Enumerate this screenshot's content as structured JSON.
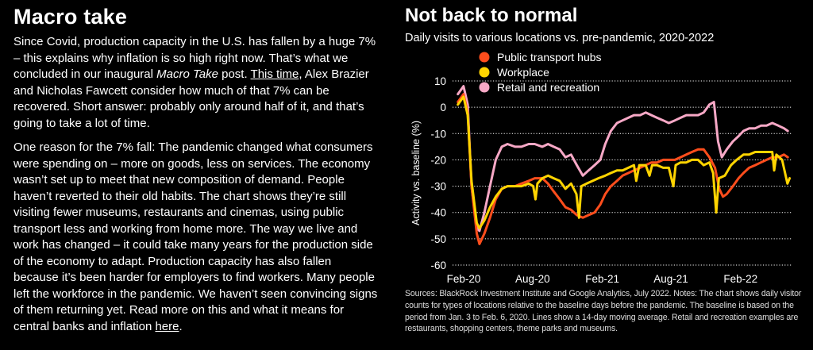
{
  "article": {
    "title": "Macro take",
    "p1_a": "Since Covid, production capacity in the U.S. has fallen by a huge 7% – this explains why inflation is so high right now. That’s what we concluded in our inaugural ",
    "p1_em": "Macro Take",
    "p1_b": " post. ",
    "p1_link": "This time",
    "p1_c": ", Alex Brazier and Nicholas Fawcett consider how much of that 7% can be recovered. Short answer: probably only around half of it, and that’s going to take a lot of time.",
    "p2_a": "One reason for the 7% fall: The pandemic changed what consumers were spending on – more on goods, less on services. The economy wasn’t set up to meet that new composition of demand. People haven’t reverted to their old habits. The chart shows they’re still visiting fewer museums, restaurants and cinemas, using public transport less and working from home more. The way we live and work has changed – it could take many years for the production side of the economy to adapt. Production capacity has also fallen because it’s been harder for employers to find workers. Many people left the workforce in the pandemic. We haven’t seen convincing signs of them returning yet. Read more on this and what it means for central banks and inflation ",
    "p2_link": "here",
    "p2_b": "."
  },
  "chart_header": {
    "title": "Not back to normal",
    "subtitle": "Daily visits to various locations vs. pre-pandemic, 2020-2022"
  },
  "chart_data": {
    "type": "line",
    "title": "Not back to normal",
    "subtitle": "Daily visits to various locations vs. pre-pandemic, 2020-2022",
    "xlabel": "",
    "ylabel": "Activity vs. baseline (%)",
    "ylim": [
      -60,
      10
    ],
    "yticks": [
      10,
      0,
      -10,
      -20,
      -30,
      -40,
      -50,
      -60
    ],
    "xlim": [
      "2020-02-01",
      "2022-07-15"
    ],
    "xticks": [
      {
        "label": "Feb-20",
        "date": "2020-02-01"
      },
      {
        "label": "Aug-20",
        "date": "2020-08-01"
      },
      {
        "label": "Feb-21",
        "date": "2021-02-01"
      },
      {
        "label": "Aug-21",
        "date": "2021-08-01"
      },
      {
        "label": "Feb-22",
        "date": "2022-02-01"
      }
    ],
    "grid": "horizontal",
    "legend_position": "top",
    "series": [
      {
        "name": "Public transport hubs",
        "color": "#FF4D1C",
        "points": [
          [
            "2020-02-15",
            2
          ],
          [
            "2020-03-01",
            5
          ],
          [
            "2020-03-12",
            -2
          ],
          [
            "2020-03-22",
            -30
          ],
          [
            "2020-04-05",
            -48
          ],
          [
            "2020-04-12",
            -52
          ],
          [
            "2020-04-25",
            -48
          ],
          [
            "2020-05-10",
            -42
          ],
          [
            "2020-05-25",
            -35
          ],
          [
            "2020-06-10",
            -31
          ],
          [
            "2020-06-25",
            -30
          ],
          [
            "2020-07-15",
            -30
          ],
          [
            "2020-08-01",
            -29
          ],
          [
            "2020-08-20",
            -28
          ],
          [
            "2020-09-05",
            -27
          ],
          [
            "2020-09-25",
            -27
          ],
          [
            "2020-10-10",
            -29
          ],
          [
            "2020-10-25",
            -32
          ],
          [
            "2020-11-10",
            -35
          ],
          [
            "2020-11-25",
            -38
          ],
          [
            "2020-12-10",
            -39
          ],
          [
            "2020-12-25",
            -41
          ],
          [
            "2021-01-10",
            -42
          ],
          [
            "2021-01-25",
            -41
          ],
          [
            "2021-02-10",
            -40
          ],
          [
            "2021-02-25",
            -37
          ],
          [
            "2021-03-10",
            -33
          ],
          [
            "2021-03-25",
            -30
          ],
          [
            "2021-04-10",
            -28
          ],
          [
            "2021-04-25",
            -26
          ],
          [
            "2021-05-10",
            -25
          ],
          [
            "2021-05-25",
            -24
          ],
          [
            "2021-06-10",
            -23
          ],
          [
            "2021-06-25",
            -22
          ],
          [
            "2021-07-10",
            -21
          ],
          [
            "2021-07-25",
            -21
          ],
          [
            "2021-08-10",
            -20
          ],
          [
            "2021-08-25",
            -20
          ],
          [
            "2021-09-10",
            -20
          ],
          [
            "2021-09-25",
            -19
          ],
          [
            "2021-10-10",
            -18
          ],
          [
            "2021-10-25",
            -17
          ],
          [
            "2021-11-10",
            -16
          ],
          [
            "2021-11-25",
            -16
          ],
          [
            "2021-12-10",
            -19
          ],
          [
            "2021-12-25",
            -23
          ],
          [
            "2022-01-05",
            -31
          ],
          [
            "2022-01-15",
            -34
          ],
          [
            "2022-01-25",
            -33
          ],
          [
            "2022-02-10",
            -30
          ],
          [
            "2022-02-25",
            -27
          ],
          [
            "2022-03-10",
            -25
          ],
          [
            "2022-03-25",
            -23
          ],
          [
            "2022-04-10",
            -22
          ],
          [
            "2022-04-25",
            -21
          ],
          [
            "2022-05-10",
            -20
          ],
          [
            "2022-05-25",
            -19
          ],
          [
            "2022-06-10",
            -19
          ],
          [
            "2022-06-25",
            -18
          ],
          [
            "2022-07-05",
            -19
          ]
        ]
      },
      {
        "name": "Workplace",
        "color": "#FFD400",
        "points": [
          [
            "2020-02-15",
            1
          ],
          [
            "2020-03-01",
            4
          ],
          [
            "2020-03-12",
            -3
          ],
          [
            "2020-03-22",
            -28
          ],
          [
            "2020-04-05",
            -44
          ],
          [
            "2020-04-12",
            -46
          ],
          [
            "2020-04-25",
            -43
          ],
          [
            "2020-05-10",
            -38
          ],
          [
            "2020-05-25",
            -34
          ],
          [
            "2020-06-10",
            -31
          ],
          [
            "2020-06-25",
            -30
          ],
          [
            "2020-07-15",
            -30
          ],
          [
            "2020-08-01",
            -30
          ],
          [
            "2020-08-20",
            -29
          ],
          [
            "2020-09-01",
            -30
          ],
          [
            "2020-09-07",
            -35
          ],
          [
            "2020-09-12",
            -29
          ],
          [
            "2020-09-25",
            -27
          ],
          [
            "2020-10-10",
            -26
          ],
          [
            "2020-10-25",
            -27
          ],
          [
            "2020-11-10",
            -28
          ],
          [
            "2020-11-25",
            -31
          ],
          [
            "2020-12-10",
            -29
          ],
          [
            "2020-12-24",
            -33
          ],
          [
            "2020-12-31",
            -42
          ],
          [
            "2021-01-06",
            -30
          ],
          [
            "2021-01-20",
            -29
          ],
          [
            "2021-02-05",
            -28
          ],
          [
            "2021-02-20",
            -27
          ],
          [
            "2021-03-10",
            -26
          ],
          [
            "2021-03-25",
            -25
          ],
          [
            "2021-04-10",
            -24
          ],
          [
            "2021-04-25",
            -24
          ],
          [
            "2021-05-10",
            -23
          ],
          [
            "2021-05-25",
            -22
          ],
          [
            "2021-05-31",
            -28
          ],
          [
            "2021-06-08",
            -22
          ],
          [
            "2021-06-25",
            -22
          ],
          [
            "2021-07-05",
            -26
          ],
          [
            "2021-07-12",
            -22
          ],
          [
            "2021-07-25",
            -22
          ],
          [
            "2021-08-10",
            -23
          ],
          [
            "2021-08-25",
            -23
          ],
          [
            "2021-09-06",
            -30
          ],
          [
            "2021-09-12",
            -22
          ],
          [
            "2021-09-25",
            -21
          ],
          [
            "2021-10-10",
            -21
          ],
          [
            "2021-10-25",
            -20
          ],
          [
            "2021-11-10",
            -20
          ],
          [
            "2021-11-25",
            -22
          ],
          [
            "2021-12-10",
            -21
          ],
          [
            "2021-12-20",
            -25
          ],
          [
            "2021-12-28",
            -40
          ],
          [
            "2022-01-04",
            -27
          ],
          [
            "2022-01-20",
            -26
          ],
          [
            "2022-02-05",
            -22
          ],
          [
            "2022-02-20",
            -20
          ],
          [
            "2022-03-10",
            -18
          ],
          [
            "2022-03-25",
            -18
          ],
          [
            "2022-04-10",
            -17
          ],
          [
            "2022-04-25",
            -17
          ],
          [
            "2022-05-10",
            -17
          ],
          [
            "2022-05-25",
            -17
          ],
          [
            "2022-05-30",
            -24
          ],
          [
            "2022-06-05",
            -18
          ],
          [
            "2022-06-20",
            -20
          ],
          [
            "2022-07-04",
            -29
          ],
          [
            "2022-07-10",
            -27
          ]
        ]
      },
      {
        "name": "Retail and recreation",
        "color": "#F7A8C6",
        "points": [
          [
            "2020-02-15",
            5
          ],
          [
            "2020-03-01",
            8
          ],
          [
            "2020-03-12",
            1
          ],
          [
            "2020-03-22",
            -30
          ],
          [
            "2020-04-05",
            -46
          ],
          [
            "2020-04-12",
            -47
          ],
          [
            "2020-04-25",
            -40
          ],
          [
            "2020-05-10",
            -30
          ],
          [
            "2020-05-25",
            -20
          ],
          [
            "2020-06-10",
            -15
          ],
          [
            "2020-06-25",
            -14
          ],
          [
            "2020-07-15",
            -15
          ],
          [
            "2020-08-01",
            -15
          ],
          [
            "2020-08-20",
            -14
          ],
          [
            "2020-09-05",
            -14
          ],
          [
            "2020-09-25",
            -15
          ],
          [
            "2020-10-10",
            -14
          ],
          [
            "2020-10-25",
            -15
          ],
          [
            "2020-11-10",
            -16
          ],
          [
            "2020-11-25",
            -19
          ],
          [
            "2020-12-10",
            -18
          ],
          [
            "2020-12-25",
            -22
          ],
          [
            "2021-01-10",
            -26
          ],
          [
            "2021-01-25",
            -24
          ],
          [
            "2021-02-10",
            -22
          ],
          [
            "2021-02-25",
            -20
          ],
          [
            "2021-03-10",
            -14
          ],
          [
            "2021-03-25",
            -9
          ],
          [
            "2021-04-10",
            -6
          ],
          [
            "2021-04-25",
            -5
          ],
          [
            "2021-05-10",
            -4
          ],
          [
            "2021-05-25",
            -3
          ],
          [
            "2021-06-10",
            -3
          ],
          [
            "2021-06-25",
            -2
          ],
          [
            "2021-07-10",
            -3
          ],
          [
            "2021-07-25",
            -4
          ],
          [
            "2021-08-10",
            -5
          ],
          [
            "2021-08-25",
            -6
          ],
          [
            "2021-09-10",
            -5
          ],
          [
            "2021-09-25",
            -4
          ],
          [
            "2021-10-10",
            -3
          ],
          [
            "2021-10-25",
            -3
          ],
          [
            "2021-11-10",
            -3
          ],
          [
            "2021-11-25",
            -2
          ],
          [
            "2021-12-10",
            1
          ],
          [
            "2021-12-22",
            2
          ],
          [
            "2022-01-02",
            -13
          ],
          [
            "2022-01-12",
            -19
          ],
          [
            "2022-01-25",
            -16
          ],
          [
            "2022-02-10",
            -13
          ],
          [
            "2022-02-25",
            -11
          ],
          [
            "2022-03-10",
            -9
          ],
          [
            "2022-03-25",
            -8
          ],
          [
            "2022-04-10",
            -8
          ],
          [
            "2022-04-25",
            -7
          ],
          [
            "2022-05-10",
            -7
          ],
          [
            "2022-05-25",
            -6
          ],
          [
            "2022-06-10",
            -7
          ],
          [
            "2022-06-25",
            -8
          ],
          [
            "2022-07-05",
            -9
          ]
        ]
      }
    ]
  },
  "source_note": "Sources: BlackRock Investment Institute and Google Analytics, July 2022. Notes: The chart shows daily visitor counts for types of locations relative to the baseline days before the pandemic. The baseline is based on the period from Jan. 3 to Feb. 6, 2020. Lines show a 14-day moving average. Retail and recreation examples are restaurants, shopping centers, theme parks and museums."
}
